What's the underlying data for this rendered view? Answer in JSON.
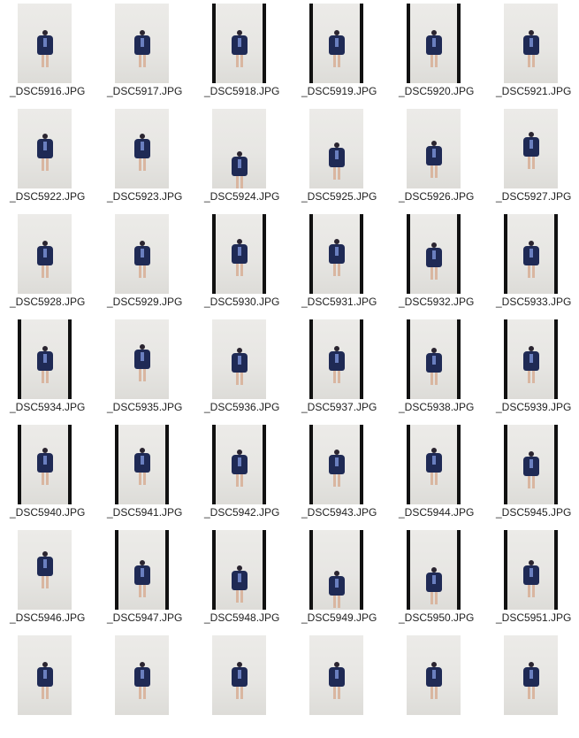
{
  "files": [
    {
      "name": "_DSC5916.JPG",
      "frame": "plain"
    },
    {
      "name": "_DSC5917.JPG",
      "frame": "plain"
    },
    {
      "name": "_DSC5918.JPG",
      "frame": "letterbox"
    },
    {
      "name": "_DSC5919.JPG",
      "frame": "letterbox"
    },
    {
      "name": "_DSC5920.JPG",
      "frame": "letterbox"
    },
    {
      "name": "_DSC5921.JPG",
      "frame": "plain"
    },
    {
      "name": "_DSC5922.JPG",
      "frame": "plain"
    },
    {
      "name": "_DSC5923.JPG",
      "frame": "plain"
    },
    {
      "name": "_DSC5924.JPG",
      "frame": "plain"
    },
    {
      "name": "_DSC5925.JPG",
      "frame": "plain"
    },
    {
      "name": "_DSC5926.JPG",
      "frame": "plain"
    },
    {
      "name": "_DSC5927.JPG",
      "frame": "plain"
    },
    {
      "name": "_DSC5928.JPG",
      "frame": "plain"
    },
    {
      "name": "_DSC5929.JPG",
      "frame": "plain"
    },
    {
      "name": "_DSC5930.JPG",
      "frame": "letterbox"
    },
    {
      "name": "_DSC5931.JPG",
      "frame": "letterbox"
    },
    {
      "name": "_DSC5932.JPG",
      "frame": "letterbox"
    },
    {
      "name": "_DSC5933.JPG",
      "frame": "letterbox"
    },
    {
      "name": "_DSC5934.JPG",
      "frame": "letterbox"
    },
    {
      "name": "_DSC5935.JPG",
      "frame": "plain"
    },
    {
      "name": "_DSC5936.JPG",
      "frame": "plain"
    },
    {
      "name": "_DSC5937.JPG",
      "frame": "letterbox"
    },
    {
      "name": "_DSC5938.JPG",
      "frame": "letterbox"
    },
    {
      "name": "_DSC5939.JPG",
      "frame": "letterbox"
    },
    {
      "name": "_DSC5940.JPG",
      "frame": "letterbox"
    },
    {
      "name": "_DSC5941.JPG",
      "frame": "letterbox"
    },
    {
      "name": "_DSC5942.JPG",
      "frame": "letterbox"
    },
    {
      "name": "_DSC5943.JPG",
      "frame": "letterbox"
    },
    {
      "name": "_DSC5944.JPG",
      "frame": "letterbox"
    },
    {
      "name": "_DSC5945.JPG",
      "frame": "letterbox"
    },
    {
      "name": "_DSC5946.JPG",
      "frame": "plain"
    },
    {
      "name": "_DSC5947.JPG",
      "frame": "letterbox"
    },
    {
      "name": "_DSC5948.JPG",
      "frame": "letterbox"
    },
    {
      "name": "_DSC5949.JPG",
      "frame": "letterbox"
    },
    {
      "name": "_DSC5950.JPG",
      "frame": "letterbox"
    },
    {
      "name": "_DSC5951.JPG",
      "frame": "letterbox"
    },
    {
      "name": "",
      "frame": "plain"
    },
    {
      "name": "",
      "frame": "plain"
    },
    {
      "name": "",
      "frame": "plain"
    },
    {
      "name": "",
      "frame": "plain"
    },
    {
      "name": "",
      "frame": "plain"
    },
    {
      "name": "",
      "frame": "plain"
    }
  ],
  "colors": {
    "coat": "#1f2a55",
    "background": "#ffffff",
    "label": "#222222",
    "letterbox": "#111111"
  }
}
